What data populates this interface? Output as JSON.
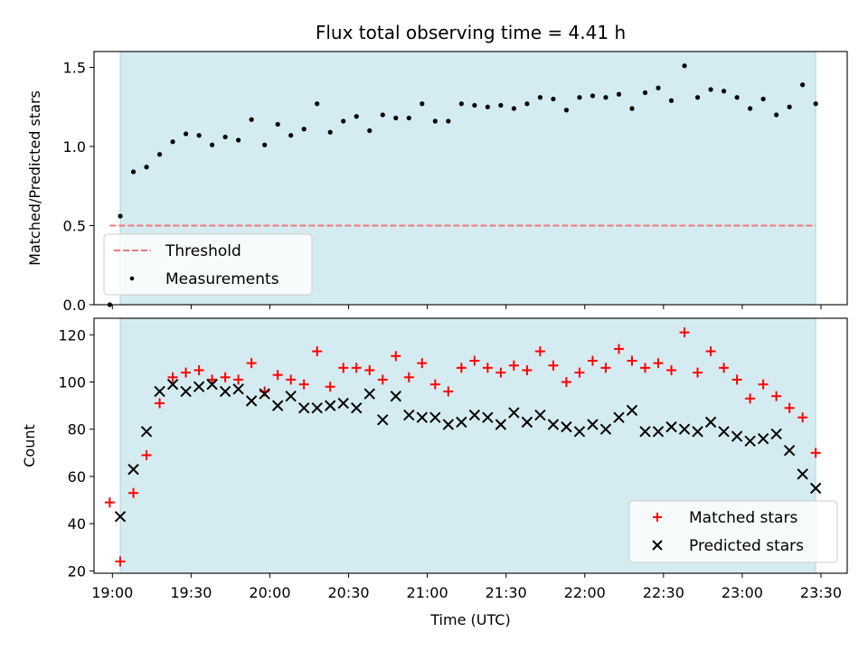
{
  "colors": {
    "shade": "#d4ebf1",
    "shade_edge": "#a9d6e2",
    "threshold": "#f07a7a",
    "matched": "#ff0000",
    "predicted": "#000000",
    "measurement": "#000000"
  },
  "chart_data": [
    {
      "type": "scatter",
      "title": "Flux total observing time = 4.41 h",
      "xlabel": "",
      "ylabel": "Matched/Predicted stars",
      "xlim": [
        "18:53",
        "23:40"
      ],
      "ylim": [
        0,
        1.6
      ],
      "yticks": [
        0.0,
        0.5,
        1.0,
        1.5
      ],
      "ytick_labels": [
        "0.0",
        "0.5",
        "1.0",
        "1.5"
      ],
      "grid": false,
      "legend_position": "lower-left",
      "shaded_span": [
        "19:03",
        "23:28"
      ],
      "threshold": {
        "name": "Threshold",
        "value": 0.5,
        "x_range": [
          "18:59",
          "23:28"
        ]
      },
      "series": [
        {
          "name": "Measurements",
          "x": [
            "18:59",
            "19:03",
            "19:08",
            "19:13",
            "19:18",
            "19:23",
            "19:28",
            "19:33",
            "19:38",
            "19:43",
            "19:48",
            "19:53",
            "19:58",
            "20:03",
            "20:08",
            "20:13",
            "20:18",
            "20:23",
            "20:28",
            "20:33",
            "20:38",
            "20:43",
            "20:48",
            "20:53",
            "20:58",
            "21:03",
            "21:08",
            "21:13",
            "21:18",
            "21:23",
            "21:28",
            "21:33",
            "21:38",
            "21:43",
            "21:48",
            "21:53",
            "21:58",
            "22:03",
            "22:08",
            "22:13",
            "22:18",
            "22:23",
            "22:28",
            "22:33",
            "22:38",
            "22:43",
            "22:48",
            "22:53",
            "22:58",
            "23:03",
            "23:08",
            "23:13",
            "23:18",
            "23:23",
            "23:28"
          ],
          "y": [
            0.0,
            0.56,
            0.84,
            0.87,
            0.95,
            1.03,
            1.08,
            1.07,
            1.01,
            1.06,
            1.04,
            1.17,
            1.01,
            1.14,
            1.07,
            1.11,
            1.27,
            1.09,
            1.16,
            1.19,
            1.1,
            1.2,
            1.18,
            1.18,
            1.27,
            1.16,
            1.16,
            1.27,
            1.26,
            1.25,
            1.26,
            1.24,
            1.27,
            1.31,
            1.3,
            1.23,
            1.31,
            1.32,
            1.31,
            1.33,
            1.24,
            1.34,
            1.37,
            1.29,
            1.51,
            1.31,
            1.36,
            1.35,
            1.31,
            1.24,
            1.3,
            1.2,
            1.25,
            1.39,
            1.27
          ]
        }
      ]
    },
    {
      "type": "scatter",
      "title": "",
      "xlabel": "Time (UTC)",
      "ylabel": "Count",
      "xlim": [
        "18:53",
        "23:40"
      ],
      "ylim": [
        19,
        127
      ],
      "yticks": [
        20,
        40,
        60,
        80,
        100,
        120
      ],
      "ytick_labels": [
        "20",
        "40",
        "60",
        "80",
        "100",
        "120"
      ],
      "xticks": [
        "19:00",
        "19:30",
        "20:00",
        "20:30",
        "21:00",
        "21:30",
        "22:00",
        "22:30",
        "23:00",
        "23:30"
      ],
      "grid": false,
      "legend_position": "lower-right",
      "shaded_span": [
        "19:03",
        "23:28"
      ],
      "series": [
        {
          "name": "Matched stars",
          "marker": "plus",
          "x": [
            "18:59",
            "19:03",
            "19:08",
            "19:13",
            "19:18",
            "19:23",
            "19:28",
            "19:33",
            "19:38",
            "19:43",
            "19:48",
            "19:53",
            "19:58",
            "20:03",
            "20:08",
            "20:13",
            "20:18",
            "20:23",
            "20:28",
            "20:33",
            "20:38",
            "20:43",
            "20:48",
            "20:53",
            "20:58",
            "21:03",
            "21:08",
            "21:13",
            "21:18",
            "21:23",
            "21:28",
            "21:33",
            "21:38",
            "21:43",
            "21:48",
            "21:53",
            "21:58",
            "22:03",
            "22:08",
            "22:13",
            "22:18",
            "22:23",
            "22:28",
            "22:33",
            "22:38",
            "22:43",
            "22:48",
            "22:53",
            "22:58",
            "23:03",
            "23:08",
            "23:13",
            "23:18",
            "23:23",
            "23:28"
          ],
          "y": [
            49,
            24,
            53,
            69,
            91,
            102,
            104,
            105,
            101,
            102,
            101,
            108,
            96,
            103,
            101,
            99,
            113,
            98,
            106,
            106,
            105,
            101,
            111,
            102,
            108,
            99,
            96,
            106,
            109,
            106,
            104,
            107,
            105,
            113,
            107,
            100,
            104,
            109,
            106,
            114,
            109,
            106,
            108,
            105,
            121,
            104,
            113,
            106,
            101,
            93,
            99,
            94,
            89,
            85,
            70
          ]
        },
        {
          "name": "Predicted stars",
          "marker": "x",
          "x": [
            "19:03",
            "19:08",
            "19:13",
            "19:18",
            "19:23",
            "19:28",
            "19:33",
            "19:38",
            "19:43",
            "19:48",
            "19:53",
            "19:58",
            "20:03",
            "20:08",
            "20:13",
            "20:18",
            "20:23",
            "20:28",
            "20:33",
            "20:38",
            "20:43",
            "20:48",
            "20:53",
            "20:58",
            "21:03",
            "21:08",
            "21:13",
            "21:18",
            "21:23",
            "21:28",
            "21:33",
            "21:38",
            "21:43",
            "21:48",
            "21:53",
            "21:58",
            "22:03",
            "22:08",
            "22:13",
            "22:18",
            "22:23",
            "22:28",
            "22:33",
            "22:38",
            "22:43",
            "22:48",
            "22:53",
            "22:58",
            "23:03",
            "23:08",
            "23:13",
            "23:18",
            "23:23",
            "23:28"
          ],
          "y": [
            43,
            63,
            79,
            96,
            99,
            96,
            98,
            99,
            96,
            97,
            92,
            95,
            90,
            94,
            89,
            89,
            90,
            91,
            89,
            95,
            84,
            94,
            86,
            85,
            85,
            82,
            83,
            86,
            85,
            82,
            87,
            83,
            86,
            82,
            81,
            79,
            82,
            80,
            85,
            88,
            79,
            79,
            81,
            80,
            79,
            83,
            79,
            77,
            75,
            76,
            78,
            71,
            61,
            55
          ]
        }
      ]
    }
  ]
}
